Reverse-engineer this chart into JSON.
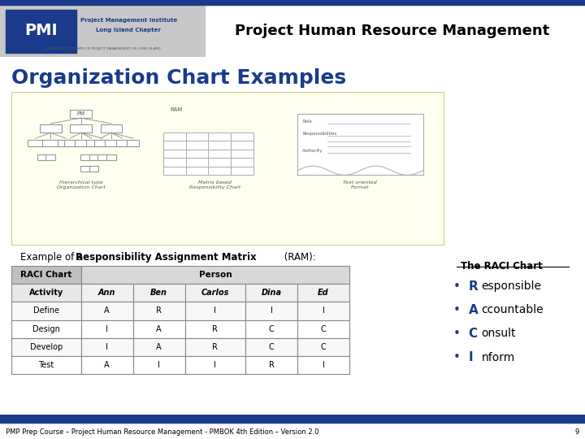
{
  "title_header": "Project Human Resource Management",
  "section_title": "Organization Chart Examples",
  "bg_color": "#ffffff",
  "header_blue_bar": "#1a3a8c",
  "yellow_box_bg": "#fffff0",
  "yellow_box_border": "#cccc88",
  "footer_text": "PMP Prep Course – Project Human Resource Management - PMBOK 4th Edition – Version 2.0",
  "footer_num": "9",
  "table_headers_row1": [
    "RACI Chart",
    "Person"
  ],
  "table_headers_row2": [
    "Activity",
    "Ann",
    "Ben",
    "Carlos",
    "Dina",
    "Ed"
  ],
  "table_data": [
    [
      "Define",
      "A",
      "R",
      "I",
      "I",
      "I"
    ],
    [
      "Design",
      "I",
      "A",
      "R",
      "C",
      "C"
    ],
    [
      "Develop",
      "I",
      "A",
      "R",
      "C",
      "C"
    ],
    [
      "Test",
      "A",
      "I",
      "I",
      "R",
      "I"
    ]
  ],
  "raci_title": "The RACI Chart",
  "raci_items": [
    {
      "letter": "R",
      "text": "esponsible"
    },
    {
      "letter": "A",
      "text": "ccountable"
    },
    {
      "letter": "C",
      "text": "onsult"
    },
    {
      "letter": "I",
      "text": "nform"
    }
  ],
  "raci_bullet_color": "#1a3a8c",
  "raci_letter_color": "#1a3a8c",
  "table_header_bg": "#c0c0c0",
  "table_person_bg": "#d8d8d8",
  "table_border": "#888888",
  "section_title_color": "#1a3a8c"
}
